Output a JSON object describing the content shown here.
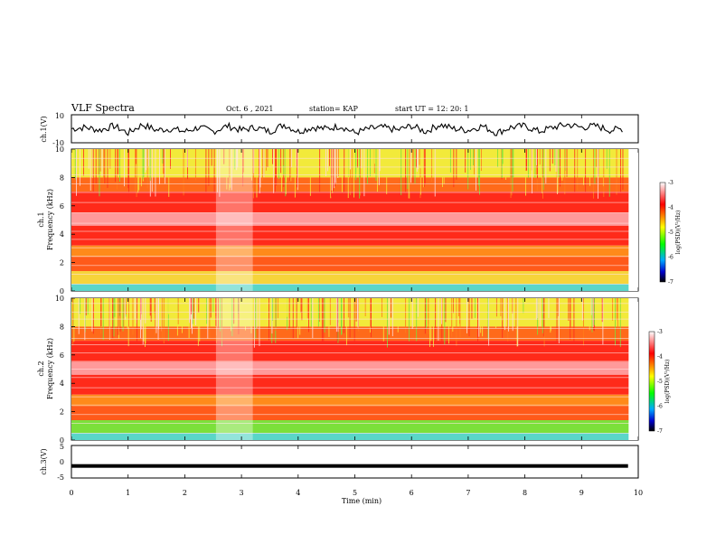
{
  "header": {
    "title": "VLF Spectra",
    "date": "Oct. 6 , 2021",
    "station": "station= KAP",
    "start": "start UT = 12: 20: 1"
  },
  "colors": {
    "axis": "#000000",
    "trace": "#000000",
    "spectrogram_high": "#ffd9d9",
    "spectrogram_mid": "#ff2a1a",
    "spectrogram_low": "#f4f032",
    "colorbar_stops": [
      "#ffffff",
      "#ff0000",
      "#ffff00",
      "#00ff00",
      "#00aaff",
      "#0000cc",
      "#000000"
    ]
  },
  "chart_data": [
    {
      "type": "line",
      "name": "ch1-waveform",
      "ylabel": "ch.1(V)",
      "ylim": [
        -10,
        10
      ],
      "yticks": [
        "10",
        "-10"
      ],
      "x": [
        0,
        0.25,
        0.5,
        0.75,
        1.0,
        1.25,
        1.5,
        1.75,
        2.0,
        2.25,
        2.5,
        2.75,
        3.0,
        3.25,
        3.5,
        3.75,
        4.0,
        4.25,
        4.5,
        4.75,
        5.0,
        5.25,
        5.5,
        5.75,
        6.0,
        6.25,
        6.5,
        6.75,
        7.0,
        7.25,
        7.5,
        7.75,
        8.0,
        8.25,
        8.5,
        8.75,
        9.0,
        9.25,
        9.5,
        9.75
      ],
      "values": [
        0,
        1,
        -1,
        2,
        -3,
        3,
        -1,
        0,
        -2,
        1,
        -2,
        2,
        -1,
        1,
        -2,
        3,
        -2,
        1,
        0,
        2,
        -3,
        0,
        1,
        -1,
        2,
        -2,
        3,
        0,
        -1,
        2,
        -3,
        1,
        2,
        -2,
        1,
        3,
        1,
        2,
        -1,
        0
      ]
    },
    {
      "type": "heatmap",
      "name": "ch1-spectrogram",
      "ylabel": "ch.1\nFrequency (kHz)",
      "ylim": [
        0,
        10
      ],
      "yticks": [
        "0",
        "2",
        "4",
        "6",
        "8",
        "10"
      ]
    },
    {
      "type": "heatmap",
      "name": "ch2-spectrogram",
      "ylabel": "ch.2\nFrequency (kHz)",
      "ylim": [
        0,
        10
      ],
      "yticks": [
        "0",
        "2",
        "4",
        "6",
        "8",
        "10"
      ]
    },
    {
      "type": "line",
      "name": "ch3-waveform",
      "ylabel": "ch.3(V)",
      "ylim": [
        -5,
        5
      ],
      "yticks": [
        "5",
        "0",
        "-5"
      ],
      "value": -1.3
    }
  ],
  "xaxis": {
    "label": "Time (min)",
    "xlim": [
      0,
      10
    ],
    "ticks": [
      "0",
      "1",
      "2",
      "3",
      "4",
      "5",
      "6",
      "7",
      "8",
      "9",
      "10"
    ]
  },
  "colorbar": {
    "label": "log(PSD)(V²/Hz)",
    "range": [
      -7,
      -3
    ],
    "ticks": [
      "-3",
      "-4",
      "-5",
      "-6",
      "-7"
    ]
  }
}
